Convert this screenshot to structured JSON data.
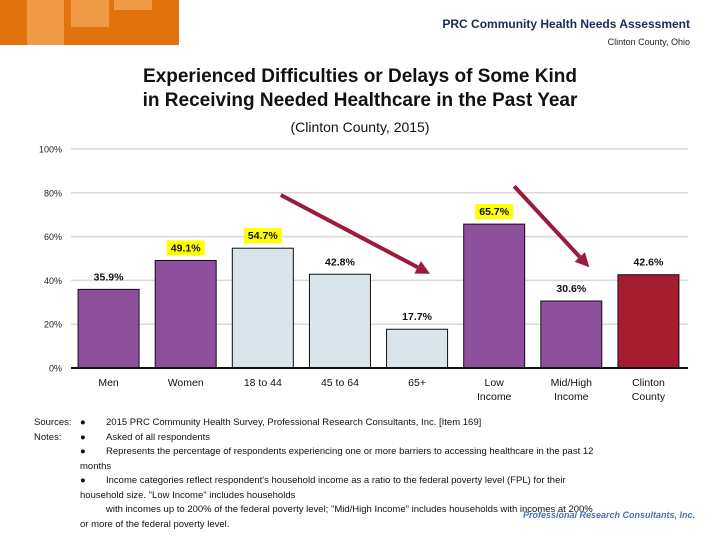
{
  "header": {
    "title": "PRC Community Health Needs Assessment",
    "subtitle": "Clinton County, Ohio"
  },
  "footer_brand": "Professional Research Consultants, Inc.",
  "chart_data": {
    "type": "bar",
    "title": "Experienced Difficulties or Delays of Some Kind in Receiving Needed Healthcare in the Past Year",
    "title_lines": [
      "Experienced Difficulties or Delays of Some Kind",
      "in Receiving Needed Healthcare in the Past Year"
    ],
    "subtitle": "(Clinton County, 2015)",
    "xlabel": "",
    "ylabel": "",
    "ylim": [
      0,
      100
    ],
    "yticks": [
      0,
      20,
      40,
      60,
      80,
      100
    ],
    "ytick_labels": [
      "0%",
      "20%",
      "40%",
      "60%",
      "80%",
      "100%"
    ],
    "grid": true,
    "categories": [
      "Men",
      "Women",
      "18 to 44",
      "45 to 64",
      "65+",
      "Low Income",
      "Mid/High Income",
      "Clinton County"
    ],
    "category_lines": [
      [
        "Men"
      ],
      [
        "Women"
      ],
      [
        "18 to 44"
      ],
      [
        "45 to 64"
      ],
      [
        "65+"
      ],
      [
        "Low",
        "Income"
      ],
      [
        "Mid/High",
        "Income"
      ],
      [
        "Clinton",
        "County"
      ]
    ],
    "values": [
      35.9,
      49.1,
      54.7,
      42.8,
      17.7,
      65.7,
      30.6,
      42.6
    ],
    "data_labels": [
      "35.9%",
      "49.1%",
      "54.7%",
      "42.8%",
      "17.7%",
      "65.7%",
      "30.6%",
      "42.6%"
    ],
    "highlighted_labels": [
      false,
      true,
      true,
      false,
      false,
      true,
      false,
      false
    ],
    "bar_groups": [
      "gender",
      "gender",
      "age",
      "age",
      "age",
      "income",
      "income",
      "total"
    ],
    "colors": {
      "gender": "#8e4f9d",
      "age": "#d9e5ea",
      "income": "#8e4f9d",
      "total": "#a51b30",
      "highlight": "#ffff00",
      "arrow": "#9a1b3c",
      "grid": "#d9d9d9"
    },
    "annotations": [
      {
        "type": "arrow",
        "from_category": "18 to 44",
        "to_category": "65+",
        "meaning": "decrease with age"
      },
      {
        "type": "arrow",
        "from_category": "Low Income",
        "to_category": "Mid/High Income",
        "meaning": "decrease with income"
      }
    ]
  },
  "notes": {
    "sources_label": "Sources:",
    "notes_label": "Notes:",
    "bullet": "●",
    "source_text": "2015 PRC Community Health Survey, Professional Research Consultants, Inc. [Item 169]",
    "note1": "Asked of all respondents",
    "note2": "Represents the percentage of respondents experiencing one or more barriers to accessing healthcare in the past 12",
    "note2_cont": "months",
    "note3": "Income categories reflect respondent's household income as a ratio to the federal poverty level (FPL) for their",
    "note3_cont": "household size. \"Low Income\" includes households",
    "note3_cont2": "with incomes up to 200% of the federal poverty level; \"Mid/High Income\" includes households with incomes at 200%",
    "note3_cont3": "or more of the federal poverty level."
  }
}
